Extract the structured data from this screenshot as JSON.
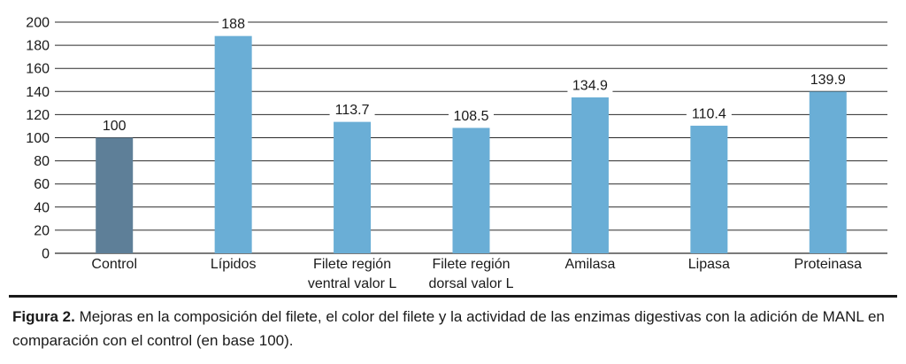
{
  "chart_data": {
    "type": "bar",
    "categories": [
      [
        "Control"
      ],
      [
        "Lípidos"
      ],
      [
        "Filete región",
        "ventral valor L"
      ],
      [
        "Filete región",
        "dorsal valor L"
      ],
      [
        "Amilasa"
      ],
      [
        "Lipasa"
      ],
      [
        "Proteinasa"
      ]
    ],
    "values": [
      100,
      188,
      113.7,
      108.5,
      134.9,
      110.4,
      139.9
    ],
    "value_labels": [
      "100",
      "188",
      "113.7",
      "108.5",
      "134.9",
      "110.4",
      "139.9"
    ],
    "colors": [
      "#5e7f98",
      "#6aaed6",
      "#6aaed6",
      "#6aaed6",
      "#6aaed6",
      "#6aaed6",
      "#6aaed6"
    ],
    "ylim": [
      0,
      200
    ],
    "yticks": [
      0,
      20,
      40,
      60,
      80,
      100,
      120,
      140,
      160,
      180,
      200
    ],
    "grid": true
  },
  "caption": {
    "label": "Figura 2.",
    "text": " Mejoras en la composición del filete, el color del filete y la actividad de las enzimas digestivas con la adición de MANL en comparación con el control (en base 100)."
  }
}
